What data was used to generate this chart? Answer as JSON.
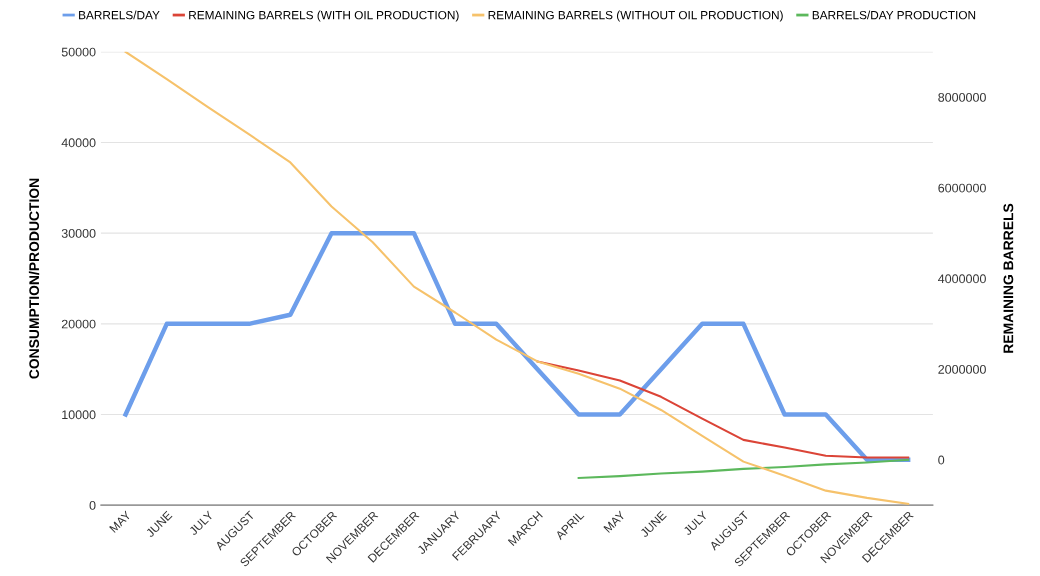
{
  "chart_data": {
    "type": "line",
    "categories": [
      "MAY",
      "JUNE",
      "JULY",
      "AUGUST",
      "SEPTEMBER",
      "OCTOBER",
      "NOVEMBER",
      "DECEMBER",
      "JANUARY",
      "FEBRUARY",
      "MARCH",
      "APRIL",
      "MAY",
      "JUNE",
      "JULY",
      "AUGUST",
      "SEPTEMBER",
      "OCTOBER",
      "NOVEMBER",
      "DECEMBER"
    ],
    "ylabel": "CONSUMPTION/PRODUCTION",
    "y2label": "REMAINING BARRELS",
    "ylim": [
      0,
      50000
    ],
    "yticks": [
      0,
      10000,
      20000,
      30000,
      40000,
      50000
    ],
    "y2lim": [
      -1000000,
      9000000
    ],
    "y2ticks": [
      0,
      2000000,
      4000000,
      6000000,
      8000000
    ],
    "grid": "y",
    "legend": "top",
    "marker": "none",
    "line_style": "solid",
    "series": [
      {
        "name": "BARRELS/DAY",
        "color": "#6d9eeb",
        "values": [
          10000,
          20000,
          20000,
          20000,
          21000,
          30000,
          30000,
          30000,
          20000,
          20000,
          15000,
          10000,
          10000,
          15000,
          20000,
          20000,
          10000,
          10000,
          5000,
          5000
        ]
      },
      {
        "name": "REMAINING BARRELS (WITH OIL PRODUCTION)",
        "color": "#db4437",
        "axis": "y2",
        "values": [
          null,
          null,
          null,
          null,
          null,
          null,
          null,
          null,
          null,
          null,
          2170000,
          1970000,
          1750000,
          1390000,
          910000,
          440000,
          270000,
          90000,
          50000,
          50000
        ]
      },
      {
        "name": "REMAINING BARRELS (WITHOUT OIL PRODUCTION)",
        "color": "#f6c26b",
        "axis": "y2",
        "values": [
          9000000,
          8400000,
          7780000,
          7180000,
          6560000,
          5590000,
          4800000,
          3820000,
          3250000,
          2650000,
          2170000,
          1900000,
          1570000,
          1100000,
          530000,
          -40000,
          -350000,
          -680000,
          -840000,
          -970000
        ]
      },
      {
        "name": "BARRELS/DAY PRODUCTION",
        "color": "#5cb85c",
        "values": [
          null,
          null,
          null,
          null,
          null,
          null,
          null,
          null,
          null,
          null,
          null,
          3000,
          3200,
          3500,
          3700,
          4000,
          4200,
          4500,
          4700,
          5000
        ]
      }
    ]
  }
}
